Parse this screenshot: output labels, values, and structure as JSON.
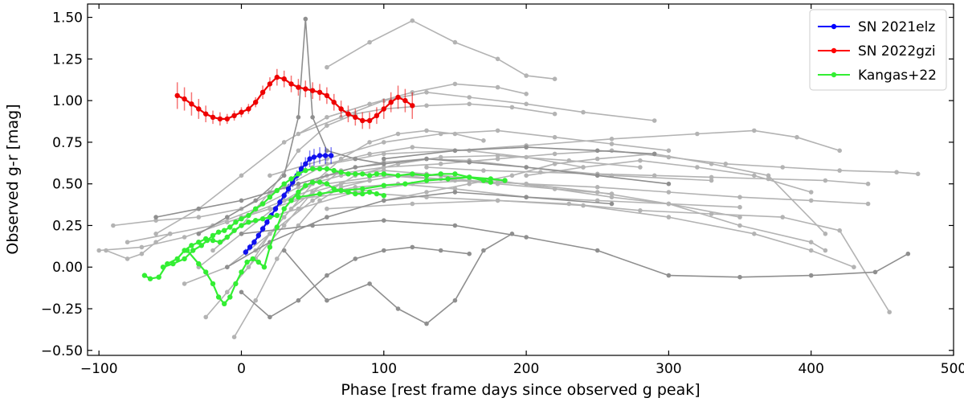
{
  "chart_data": {
    "type": "line",
    "xlabel": "Phase [rest frame days since observed g peak]",
    "ylabel": "Observed g-r [mag]",
    "xlim": [
      -108,
      500
    ],
    "ylim": [
      -0.53,
      1.58
    ],
    "xticks": [
      -100,
      0,
      100,
      200,
      300,
      400,
      500
    ],
    "yticks": [
      -0.5,
      -0.25,
      0.0,
      0.25,
      0.5,
      0.75,
      1.0,
      1.25,
      1.5
    ],
    "xtick_labels": [
      "−100",
      "0",
      "100",
      "200",
      "300",
      "400",
      "500"
    ],
    "ytick_labels": [
      "−0.50",
      "−0.25",
      "0.00",
      "0.25",
      "0.50",
      "0.75",
      "1.00",
      "1.25",
      "1.50"
    ],
    "grid": false,
    "legend_position": "top-right",
    "legend": [
      {
        "label": "SN 2021elz",
        "color": "#0000ff"
      },
      {
        "label": "SN 2022gzi",
        "color": "#ff0000"
      },
      {
        "label": "Kangas+22",
        "color": "#33ee33"
      }
    ],
    "highlight_series": [
      {
        "name": "SN 2021elz",
        "color": "#1010ee",
        "errors": true,
        "x": [
          3,
          6,
          9,
          12,
          15,
          18,
          21,
          24,
          27,
          30,
          33,
          36,
          39,
          42,
          45,
          48,
          51,
          55,
          59,
          63
        ],
        "y": [
          0.09,
          0.12,
          0.15,
          0.19,
          0.23,
          0.27,
          0.31,
          0.35,
          0.39,
          0.43,
          0.47,
          0.51,
          0.55,
          0.59,
          0.62,
          0.65,
          0.66,
          0.67,
          0.67,
          0.67
        ],
        "err": [
          0.02,
          0.02,
          0.02,
          0.02,
          0.02,
          0.02,
          0.02,
          0.02,
          0.02,
          0.02,
          0.03,
          0.03,
          0.03,
          0.04,
          0.04,
          0.05,
          0.05,
          0.05,
          0.05,
          0.05
        ]
      },
      {
        "name": "SN 2022gzi",
        "color": "#ee0000",
        "errors": true,
        "x": [
          -45,
          -40,
          -35,
          -30,
          -25,
          -20,
          -15,
          -10,
          -5,
          0,
          5,
          10,
          15,
          20,
          25,
          30,
          35,
          40,
          45,
          50,
          55,
          60,
          65,
          70,
          75,
          80,
          85,
          90,
          95,
          100,
          105,
          110,
          115,
          120
        ],
        "y": [
          1.03,
          1.01,
          0.98,
          0.95,
          0.92,
          0.9,
          0.89,
          0.89,
          0.91,
          0.93,
          0.95,
          0.99,
          1.05,
          1.1,
          1.14,
          1.13,
          1.1,
          1.08,
          1.07,
          1.06,
          1.05,
          1.03,
          0.99,
          0.95,
          0.92,
          0.9,
          0.88,
          0.88,
          0.91,
          0.95,
          0.99,
          1.02,
          1.0,
          0.97
        ],
        "err": [
          0.08,
          0.07,
          0.07,
          0.06,
          0.05,
          0.04,
          0.04,
          0.03,
          0.03,
          0.03,
          0.03,
          0.03,
          0.04,
          0.04,
          0.05,
          0.05,
          0.05,
          0.05,
          0.05,
          0.05,
          0.05,
          0.05,
          0.05,
          0.05,
          0.05,
          0.05,
          0.05,
          0.05,
          0.05,
          0.06,
          0.06,
          0.07,
          0.07,
          0.08
        ]
      },
      {
        "name": "Kangas+22 a",
        "color": "#33ee33",
        "x": [
          -68,
          -64,
          -58,
          -52,
          -45,
          -40,
          -35,
          -30,
          -25,
          -20,
          -15,
          -10,
          -5,
          0,
          5,
          10,
          15,
          20,
          25
        ],
        "y": [
          -0.05,
          -0.07,
          -0.06,
          0.02,
          0.05,
          0.1,
          0.13,
          0.15,
          0.17,
          0.16,
          0.15,
          0.18,
          0.22,
          0.25,
          0.27,
          0.28,
          0.29,
          0.3,
          0.31
        ]
      },
      {
        "name": "Kangas+22 b",
        "color": "#33ee33",
        "x": [
          -55,
          -48,
          -40,
          -34,
          -28,
          -24,
          -20,
          -16,
          -12,
          -8,
          -4,
          0,
          5,
          10,
          15,
          20,
          25,
          30,
          35,
          40,
          45,
          50,
          55,
          60,
          65,
          70,
          75,
          80,
          85,
          90,
          95,
          100,
          110,
          120,
          130,
          140,
          150,
          160,
          170,
          175
        ],
        "y": [
          0.0,
          0.02,
          0.05,
          0.1,
          0.13,
          0.16,
          0.19,
          0.21,
          0.22,
          0.24,
          0.27,
          0.29,
          0.31,
          0.35,
          0.38,
          0.42,
          0.46,
          0.5,
          0.53,
          0.56,
          0.58,
          0.59,
          0.59,
          0.59,
          0.58,
          0.57,
          0.56,
          0.56,
          0.56,
          0.55,
          0.56,
          0.56,
          0.55,
          0.56,
          0.55,
          0.56,
          0.56,
          0.54,
          0.52,
          0.51
        ]
      },
      {
        "name": "Kangas+22 c",
        "color": "#33ee33",
        "x": [
          -38,
          -30,
          -25,
          -20,
          -16,
          -12,
          -8,
          -4,
          0,
          4,
          8,
          12,
          16,
          20,
          25,
          30,
          35,
          40,
          45,
          50,
          55,
          60,
          65,
          70,
          75,
          80,
          85,
          90,
          95,
          100
        ],
        "y": [
          0.1,
          0.02,
          -0.03,
          -0.1,
          -0.18,
          -0.22,
          -0.18,
          -0.1,
          -0.03,
          0.03,
          0.05,
          0.03,
          0.0,
          0.12,
          0.24,
          0.35,
          0.4,
          0.45,
          0.49,
          0.51,
          0.51,
          0.5,
          0.47,
          0.46,
          0.45,
          0.44,
          0.44,
          0.45,
          0.44,
          0.43
        ]
      },
      {
        "name": "Kangas+22 d",
        "color": "#33ee33",
        "x": [
          40,
          55,
          70,
          85,
          100,
          115,
          130,
          145,
          160,
          175,
          185
        ],
        "y": [
          0.42,
          0.44,
          0.46,
          0.47,
          0.49,
          0.5,
          0.52,
          0.53,
          0.54,
          0.53,
          0.52
        ]
      }
    ],
    "comparison_series": [
      {
        "color": "#b3b3b3",
        "x": [
          -100,
          -70,
          -40,
          -10,
          20,
          50,
          80,
          110,
          150,
          200,
          250,
          300,
          350
        ],
        "y": [
          0.1,
          0.12,
          0.18,
          0.27,
          0.35,
          0.43,
          0.48,
          0.5,
          0.47,
          0.42,
          0.4,
          0.38,
          0.36
        ]
      },
      {
        "color": "#b3b3b3",
        "x": [
          -90,
          -60,
          -30,
          0,
          30,
          60,
          90,
          120,
          160,
          200,
          240
        ],
        "y": [
          0.25,
          0.28,
          0.3,
          0.35,
          0.48,
          0.62,
          0.68,
          0.72,
          0.7,
          0.66,
          0.6
        ]
      },
      {
        "color": "#b3b3b3",
        "x": [
          -60,
          -30,
          0,
          30,
          60,
          90,
          120,
          150,
          180,
          200
        ],
        "y": [
          0.2,
          0.35,
          0.55,
          0.75,
          0.9,
          0.98,
          1.05,
          1.1,
          1.08,
          1.04
        ]
      },
      {
        "color": "#b3b3b3",
        "x": [
          -20,
          0,
          20,
          40,
          60,
          80,
          100,
          130,
          160,
          190,
          220
        ],
        "y": [
          0.1,
          0.25,
          0.45,
          0.7,
          0.85,
          0.92,
          0.95,
          0.97,
          0.98,
          0.96,
          0.92
        ]
      },
      {
        "color": "#b3b3b3",
        "x": [
          -10,
          10,
          30,
          50,
          70,
          100,
          130,
          160,
          200,
          260,
          330
        ],
        "y": [
          -0.15,
          0.05,
          0.25,
          0.45,
          0.58,
          0.63,
          0.65,
          0.64,
          0.6,
          0.55,
          0.52
        ]
      },
      {
        "color": "#b3b3b3",
        "x": [
          100,
          130,
          160,
          190,
          220,
          250,
          290,
          330,
          370,
          410
        ],
        "y": [
          0.4,
          0.45,
          0.5,
          0.55,
          0.62,
          0.65,
          0.68,
          0.62,
          0.55,
          0.2
        ]
      },
      {
        "color": "#b3b3b3",
        "x": [
          0,
          30,
          60,
          100,
          140,
          180,
          220,
          260,
          300,
          350
        ],
        "y": [
          0.3,
          0.4,
          0.5,
          0.55,
          0.55,
          0.52,
          0.47,
          0.42,
          0.38,
          0.3
        ]
      },
      {
        "color": "#b3b3b3",
        "x": [
          60,
          90,
          120,
          150,
          180,
          200,
          220
        ],
        "y": [
          1.2,
          1.35,
          1.48,
          1.35,
          1.25,
          1.15,
          1.13
        ]
      },
      {
        "color": "#b3b3b3",
        "x": [
          40,
          70,
          100,
          130,
          160,
          200,
          240,
          290
        ],
        "y": [
          0.8,
          0.9,
          1.0,
          1.05,
          1.02,
          0.98,
          0.93,
          0.88
        ]
      },
      {
        "color": "#b3b3b3",
        "x": [
          -30,
          0,
          30,
          60,
          100,
          140,
          180,
          220,
          260,
          300,
          340,
          380,
          420,
          460,
          475
        ],
        "y": [
          0.0,
          0.2,
          0.4,
          0.55,
          0.6,
          0.62,
          0.65,
          0.68,
          0.7,
          0.66,
          0.62,
          0.6,
          0.58,
          0.57,
          0.56
        ]
      },
      {
        "color": "#b3b3b3",
        "x": [
          50,
          100,
          150,
          200,
          260,
          320,
          360,
          390,
          420
        ],
        "y": [
          0.6,
          0.68,
          0.7,
          0.73,
          0.77,
          0.8,
          0.82,
          0.78,
          0.7
        ]
      },
      {
        "color": "#b3b3b3",
        "x": [
          30,
          80,
          130,
          180,
          230,
          280,
          330,
          380,
          420,
          455
        ],
        "y": [
          0.4,
          0.45,
          0.42,
          0.4,
          0.38,
          0.34,
          0.32,
          0.3,
          0.22,
          -0.27
        ]
      },
      {
        "color": "#b3b3b3",
        "x": [
          60,
          120,
          180,
          240,
          300,
          360,
          400,
          430
        ],
        "y": [
          0.35,
          0.38,
          0.4,
          0.37,
          0.3,
          0.2,
          0.1,
          0.0
        ]
      },
      {
        "color": "#b3b3b3",
        "x": [
          -5,
          10,
          25,
          40,
          55,
          70,
          90,
          110,
          140,
          180,
          220,
          260
        ],
        "y": [
          -0.42,
          -0.2,
          0.05,
          0.25,
          0.4,
          0.48,
          0.52,
          0.55,
          0.53,
          0.5,
          0.47,
          0.44
        ]
      },
      {
        "color": "#b3b3b3",
        "x": [
          20,
          60,
          100,
          140,
          180,
          220,
          260,
          300
        ],
        "y": [
          0.55,
          0.65,
          0.75,
          0.8,
          0.82,
          0.78,
          0.74,
          0.7
        ]
      },
      {
        "color": "#b3b3b3",
        "x": [
          -80,
          -50,
          -20,
          10,
          40,
          70,
          100,
          130,
          160
        ],
        "y": [
          0.15,
          0.2,
          0.25,
          0.35,
          0.48,
          0.55,
          0.58,
          0.56,
          0.52
        ]
      },
      {
        "color": "#b3b3b3",
        "x": [
          -40,
          -10,
          20,
          50,
          80,
          110,
          140,
          180,
          230,
          280
        ],
        "y": [
          -0.1,
          0.0,
          0.2,
          0.4,
          0.55,
          0.62,
          0.66,
          0.67,
          0.64,
          0.6
        ]
      },
      {
        "color": "#b3b3b3",
        "x": [
          0,
          40,
          80,
          120,
          160,
          200,
          250,
          300,
          350,
          400,
          410
        ],
        "y": [
          0.25,
          0.35,
          0.45,
          0.5,
          0.52,
          0.5,
          0.45,
          0.38,
          0.25,
          0.15,
          0.1
        ]
      },
      {
        "color": "#b3b3b3",
        "x": [
          10,
          30,
          50,
          70,
          90,
          110,
          130,
          150,
          170
        ],
        "y": [
          0.1,
          0.3,
          0.5,
          0.65,
          0.75,
          0.8,
          0.82,
          0.8,
          0.76
        ]
      },
      {
        "color": "#b3b3b3",
        "x": [
          100,
          150,
          200,
          250,
          300,
          350,
          400,
          440
        ],
        "y": [
          0.55,
          0.52,
          0.5,
          0.48,
          0.45,
          0.42,
          0.4,
          0.38
        ]
      },
      {
        "color": "#b3b3b3",
        "x": [
          -95,
          -80,
          -70,
          -60,
          -50
        ],
        "y": [
          0.1,
          0.05,
          0.08,
          0.15,
          0.2
        ]
      },
      {
        "color": "#b3b3b3",
        "x": [
          200,
          240,
          280,
          320,
          360,
          400
        ],
        "y": [
          0.55,
          0.6,
          0.64,
          0.6,
          0.55,
          0.45
        ]
      },
      {
        "color": "#b3b3b3",
        "x": [
          -25,
          -10,
          5,
          20,
          35,
          50,
          70,
          90
        ],
        "y": [
          -0.3,
          -0.15,
          0.0,
          0.2,
          0.35,
          0.45,
          0.5,
          0.52
        ]
      },
      {
        "color": "#b3b3b3",
        "x": [
          130,
          170,
          210,
          250,
          290,
          330,
          370,
          410,
          440
        ],
        "y": [
          0.6,
          0.58,
          0.57,
          0.56,
          0.55,
          0.54,
          0.53,
          0.52,
          0.5
        ]
      },
      {
        "color": "#8f8f8f",
        "x": [
          -30,
          -10,
          10,
          30,
          40,
          45,
          50,
          60,
          80,
          100
        ],
        "y": [
          0.2,
          0.3,
          0.4,
          0.55,
          0.9,
          1.49,
          0.9,
          0.7,
          0.65,
          0.62
        ]
      },
      {
        "color": "#8f8f8f",
        "x": [
          -60,
          -30,
          0,
          40,
          80,
          130,
          160,
          200,
          250,
          300
        ],
        "y": [
          0.3,
          0.35,
          0.4,
          0.5,
          0.6,
          0.65,
          0.63,
          0.6,
          0.55,
          0.5
        ]
      },
      {
        "color": "#8f8f8f",
        "x": [
          0,
          50,
          100,
          150,
          200,
          250,
          300,
          350,
          400,
          445,
          468
        ],
        "y": [
          0.2,
          0.25,
          0.28,
          0.25,
          0.18,
          0.1,
          -0.05,
          -0.06,
          -0.05,
          -0.03,
          0.08
        ]
      },
      {
        "color": "#8f8f8f",
        "x": [
          30,
          60,
          90,
          110,
          130,
          150,
          170,
          190
        ],
        "y": [
          0.1,
          -0.2,
          -0.1,
          -0.25,
          -0.34,
          -0.2,
          0.1,
          0.2
        ]
      },
      {
        "color": "#8f8f8f",
        "x": [
          0,
          20,
          40,
          60,
          80,
          100,
          120,
          140,
          160
        ],
        "y": [
          -0.15,
          -0.3,
          -0.2,
          -0.05,
          0.05,
          0.1,
          0.12,
          0.1,
          0.08
        ]
      },
      {
        "color": "#8f8f8f",
        "x": [
          100,
          150,
          200,
          250,
          290
        ],
        "y": [
          0.65,
          0.7,
          0.72,
          0.7,
          0.68
        ]
      },
      {
        "color": "#8f8f8f",
        "x": [
          -10,
          20,
          60,
          100,
          150,
          200,
          260
        ],
        "y": [
          0.0,
          0.15,
          0.3,
          0.4,
          0.45,
          0.42,
          0.38
        ]
      }
    ]
  }
}
